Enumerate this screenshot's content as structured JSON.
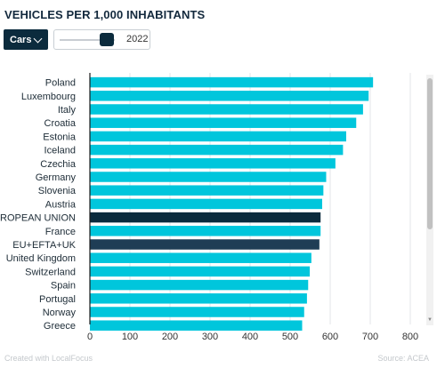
{
  "title": "VEHICLES PER 1,000 INHABITANTS",
  "controls": {
    "vehicle_type": "Cars",
    "year": "2022",
    "year_level": 0.85
  },
  "colors": {
    "bar": "#00c6dc",
    "highlight_eu": "#0b2b3d",
    "highlight_eftauk": "#1f3d55",
    "axis": "#1a1a1a",
    "grid": "#e3e6e8"
  },
  "chart_data": {
    "type": "bar",
    "orientation": "horizontal",
    "categories": [
      "Poland",
      "Luxembourg",
      "Italy",
      "Croatia",
      "Estonia",
      "Iceland",
      "Czechia",
      "Germany",
      "Slovenia",
      "Austria",
      "EUROPEAN UNION",
      "France",
      "EU+EFTA+UK",
      "United Kingdom",
      "Switzerland",
      "Spain",
      "Portugal",
      "Norway",
      "Greece"
    ],
    "values": [
      707,
      696,
      682,
      665,
      640,
      632,
      613,
      590,
      583,
      580,
      576,
      576,
      573,
      553,
      549,
      545,
      542,
      535,
      530
    ],
    "highlighted": [
      "EUROPEAN UNION",
      "EU+EFTA+UK"
    ],
    "xlim": [
      0,
      800
    ],
    "xticks": [
      "0",
      "100",
      "200",
      "300",
      "400",
      "500",
      "600",
      "700",
      "800"
    ],
    "grid": true
  },
  "footer": {
    "credit": "Created with LocalFocus",
    "source": "Source: ACEA"
  }
}
